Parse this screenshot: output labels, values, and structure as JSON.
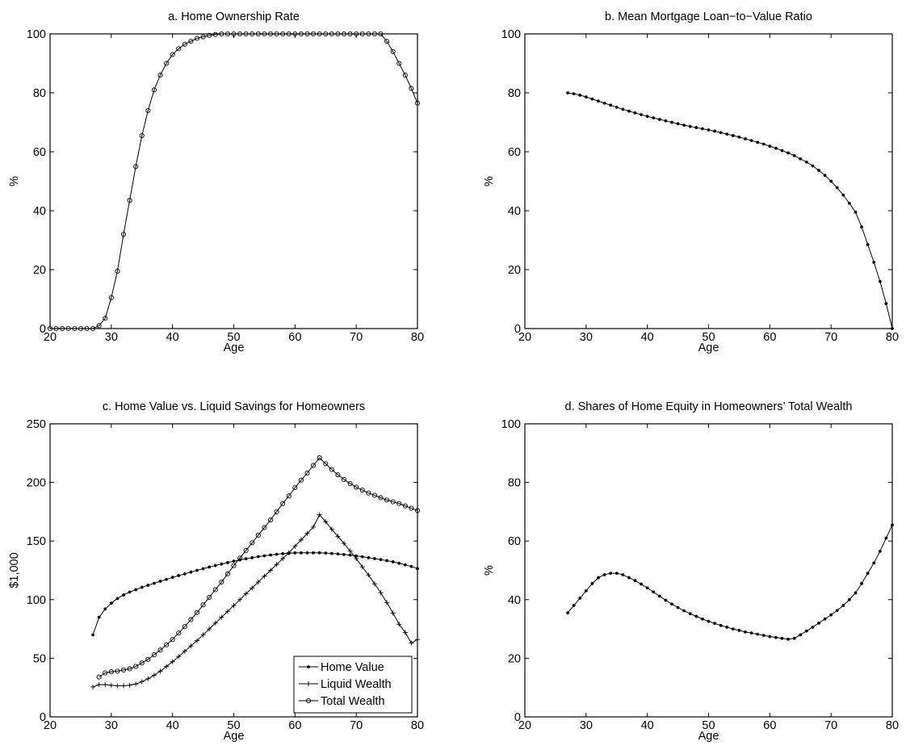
{
  "chart_data": [
    {
      "id": "a",
      "type": "line",
      "title": "a. Home Ownership Rate",
      "xlabel": "Age",
      "ylabel": "%",
      "xlim": [
        20,
        80
      ],
      "ylim": [
        0,
        100
      ],
      "xticks": [
        20,
        30,
        40,
        50,
        60,
        70,
        80
      ],
      "yticks": [
        0,
        20,
        40,
        60,
        80,
        100
      ],
      "grid": false,
      "series": [
        {
          "marker": "circle",
          "x": [
            20,
            21,
            22,
            23,
            24,
            25,
            26,
            27,
            28,
            29,
            30,
            31,
            32,
            33,
            34,
            35,
            36,
            37,
            38,
            39,
            40,
            41,
            42,
            43,
            44,
            45,
            46,
            47,
            48,
            49,
            50,
            51,
            52,
            53,
            54,
            55,
            56,
            57,
            58,
            59,
            60,
            61,
            62,
            63,
            64,
            65,
            66,
            67,
            68,
            69,
            70,
            71,
            72,
            73,
            74,
            75,
            76,
            77,
            78,
            79,
            80
          ],
          "y": [
            0,
            0,
            0,
            0,
            0,
            0,
            0,
            0,
            1,
            3.5,
            10.5,
            19.5,
            32,
            43.5,
            55,
            65.5,
            74,
            81,
            86,
            90,
            93,
            95,
            96.5,
            97.5,
            98.5,
            99,
            99.5,
            99.8,
            100,
            100,
            100,
            100,
            100,
            100,
            100,
            100,
            100,
            100,
            100,
            100,
            100,
            100,
            100,
            100,
            100,
            100,
            100,
            100,
            100,
            100,
            100,
            100,
            100,
            100,
            100,
            97.5,
            94,
            90,
            86,
            81.5,
            76.5
          ]
        }
      ]
    },
    {
      "id": "b",
      "type": "line",
      "title": "b. Mean Mortgage Loan−to−Value Ratio",
      "xlabel": "Age",
      "ylabel": "%",
      "xlim": [
        20,
        80
      ],
      "ylim": [
        0,
        100
      ],
      "xticks": [
        20,
        30,
        40,
        50,
        60,
        70,
        80
      ],
      "yticks": [
        0,
        20,
        40,
        60,
        80,
        100
      ],
      "grid": false,
      "series": [
        {
          "marker": "dot",
          "x": [
            27,
            28,
            29,
            30,
            31,
            32,
            33,
            34,
            35,
            36,
            37,
            38,
            39,
            40,
            41,
            42,
            43,
            44,
            45,
            46,
            47,
            48,
            49,
            50,
            51,
            52,
            53,
            54,
            55,
            56,
            57,
            58,
            59,
            60,
            61,
            62,
            63,
            64,
            65,
            66,
            67,
            68,
            69,
            70,
            71,
            72,
            73,
            74,
            75,
            76,
            77,
            78,
            79,
            80
          ],
          "y": [
            80,
            79.7,
            79.2,
            78.6,
            77.9,
            77.2,
            76.5,
            75.8,
            75.1,
            74.4,
            73.8,
            73.2,
            72.6,
            72.0,
            71.5,
            71.0,
            70.5,
            70.0,
            69.5,
            69.0,
            68.6,
            68.2,
            67.8,
            67.4,
            67.0,
            66.5,
            66.0,
            65.5,
            65.0,
            64.4,
            63.8,
            63.2,
            62.6,
            61.9,
            61.2,
            60.4,
            59.6,
            58.7,
            57.6,
            56.5,
            55.2,
            53.7,
            52.0,
            50.0,
            47.8,
            45.3,
            42.5,
            39.5,
            34.5,
            28.5,
            22.5,
            16.0,
            8.5,
            0
          ]
        }
      ]
    },
    {
      "id": "c",
      "type": "line",
      "title": "c. Home Value vs. Liquid Savings for Homeowners",
      "xlabel": "Age",
      "ylabel": "$1,000",
      "xlim": [
        20,
        80
      ],
      "ylim": [
        0,
        250
      ],
      "xticks": [
        20,
        30,
        40,
        50,
        60,
        70,
        80
      ],
      "yticks": [
        0,
        50,
        100,
        150,
        200,
        250
      ],
      "grid": false,
      "legend_position": "bottom-right",
      "series": [
        {
          "name": "Home Value",
          "marker": "dot",
          "x": [
            27,
            28,
            29,
            30,
            31,
            32,
            33,
            34,
            35,
            36,
            37,
            38,
            39,
            40,
            41,
            42,
            43,
            44,
            45,
            46,
            47,
            48,
            49,
            50,
            51,
            52,
            53,
            54,
            55,
            56,
            57,
            58,
            59,
            60,
            61,
            62,
            63,
            64,
            65,
            66,
            67,
            68,
            69,
            70,
            71,
            72,
            73,
            74,
            75,
            76,
            77,
            78,
            79,
            80
          ],
          "y": [
            70,
            85,
            92,
            97,
            101,
            104,
            106.5,
            108.5,
            110.5,
            112.3,
            114,
            115.7,
            117.3,
            119,
            120.5,
            122,
            123.5,
            125,
            126.4,
            127.8,
            129.1,
            130.4,
            131.6,
            132.8,
            133.9,
            134.9,
            135.8,
            136.7,
            137.4,
            138.1,
            138.7,
            139.2,
            139.6,
            139.9,
            140,
            140,
            140,
            140,
            139.7,
            139.4,
            139,
            138.5,
            138,
            137.3,
            136.6,
            135.8,
            135,
            134.2,
            133.3,
            132.3,
            131,
            129.7,
            128.3,
            126.5
          ]
        },
        {
          "name": "Liquid Wealth",
          "marker": "plus",
          "x": [
            27,
            28,
            29,
            30,
            31,
            32,
            33,
            34,
            35,
            36,
            37,
            38,
            39,
            40,
            41,
            42,
            43,
            44,
            45,
            46,
            47,
            48,
            49,
            50,
            51,
            52,
            53,
            54,
            55,
            56,
            57,
            58,
            59,
            60,
            61,
            62,
            63,
            64,
            65,
            66,
            67,
            68,
            69,
            70,
            71,
            72,
            73,
            74,
            75,
            76,
            77,
            78,
            79,
            80
          ],
          "y": [
            25.5,
            27.5,
            27.5,
            27,
            26.5,
            26.5,
            27,
            28,
            30,
            32.5,
            35.5,
            39,
            43,
            47,
            51.5,
            56,
            60.5,
            65,
            70,
            75,
            80,
            85,
            90,
            95,
            100,
            105,
            110,
            115,
            120,
            125,
            130,
            135,
            140,
            145.5,
            151,
            156.5,
            162,
            172.5,
            166.5,
            160,
            154,
            148,
            141.5,
            135,
            128,
            121,
            113.5,
            106,
            97.5,
            88.5,
            79,
            72,
            63,
            66
          ]
        },
        {
          "name": "Total Wealth",
          "marker": "circle",
          "x": [
            28,
            29,
            30,
            31,
            32,
            33,
            34,
            35,
            36,
            37,
            38,
            39,
            40,
            41,
            42,
            43,
            44,
            45,
            46,
            47,
            48,
            49,
            50,
            51,
            52,
            53,
            54,
            55,
            56,
            57,
            58,
            59,
            60,
            61,
            62,
            63,
            64,
            65,
            66,
            67,
            68,
            69,
            70,
            71,
            72,
            73,
            74,
            75,
            76,
            77,
            78,
            79,
            80
          ],
          "y": [
            34,
            37.5,
            38.5,
            39,
            40,
            41,
            43,
            46,
            49,
            53,
            57,
            61.5,
            66,
            71.5,
            77,
            83,
            89,
            95.5,
            102,
            108.5,
            115,
            122,
            129,
            135.5,
            142,
            148.5,
            155,
            161.5,
            168,
            175,
            182,
            188.5,
            195.5,
            202,
            208,
            214.5,
            221,
            216,
            211,
            206.5,
            202.5,
            199,
            196,
            193.5,
            191,
            189,
            187,
            185,
            183.5,
            182,
            180,
            178,
            176
          ]
        }
      ]
    },
    {
      "id": "d",
      "type": "line",
      "title": "d. Shares of Home Equity in Homeowners’ Total Wealth",
      "xlabel": "Age",
      "ylabel": "%",
      "xlim": [
        20,
        80
      ],
      "ylim": [
        0,
        100
      ],
      "xticks": [
        20,
        30,
        40,
        50,
        60,
        70,
        80
      ],
      "yticks": [
        0,
        20,
        40,
        60,
        80,
        100
      ],
      "grid": false,
      "series": [
        {
          "marker": "dot",
          "x": [
            27,
            28,
            29,
            30,
            31,
            32,
            33,
            34,
            35,
            36,
            37,
            38,
            39,
            40,
            41,
            42,
            43,
            44,
            45,
            46,
            47,
            48,
            49,
            50,
            51,
            52,
            53,
            54,
            55,
            56,
            57,
            58,
            59,
            60,
            61,
            62,
            63,
            64,
            65,
            66,
            67,
            68,
            69,
            70,
            71,
            72,
            73,
            74,
            75,
            76,
            77,
            78,
            79,
            80
          ],
          "y": [
            35.5,
            38,
            40.5,
            43,
            45.5,
            47.5,
            48.5,
            49,
            49,
            48.5,
            47.5,
            46.5,
            45.3,
            44,
            42.6,
            41.2,
            39.8,
            38.5,
            37.3,
            36.2,
            35.2,
            34.3,
            33.4,
            32.6,
            31.9,
            31.2,
            30.6,
            30.0,
            29.5,
            29.0,
            28.6,
            28.2,
            27.8,
            27.4,
            27.1,
            26.8,
            26.5,
            26.8,
            28.0,
            29.3,
            30.6,
            32.0,
            33.4,
            34.8,
            36.3,
            38.0,
            40.0,
            42.3,
            45.5,
            49.0,
            52.5,
            56.5,
            61,
            65.5
          ]
        }
      ]
    }
  ]
}
